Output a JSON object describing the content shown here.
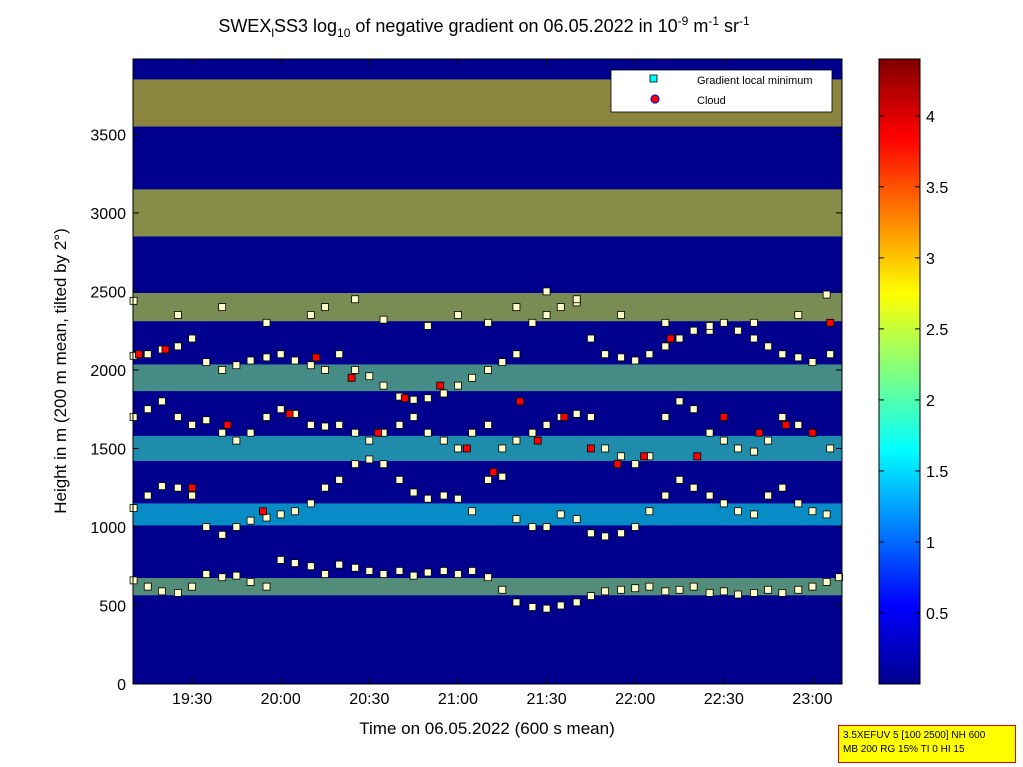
{
  "chart_data": {
    "type": "heatmap",
    "title": {
      "prefix": "SWEX",
      "sub1": "l",
      "mid": "SS3 log",
      "sub2": "10",
      "mid2": " of negative gradient on 06.05.2022 in 10",
      "sup1": "-9",
      "mid3": " m",
      "sup2": "-1",
      "mid4": " sr",
      "sup3": "-1"
    },
    "xlabel": "Time on 06.05.2022 (600 s mean)",
    "ylabel": "Height in m (200 m mean, tilted by 2°)",
    "xlim": [
      19.1667,
      23.1667
    ],
    "ylim": [
      0,
      3980
    ],
    "xticks": [
      {
        "v": 19.5,
        "label": "19:30"
      },
      {
        "v": 20.0,
        "label": "20:00"
      },
      {
        "v": 20.5,
        "label": "20:30"
      },
      {
        "v": 21.0,
        "label": "21:00"
      },
      {
        "v": 21.5,
        "label": "21:30"
      },
      {
        "v": 22.0,
        "label": "22:00"
      },
      {
        "v": 22.5,
        "label": "22:30"
      },
      {
        "v": 23.0,
        "label": "23:00"
      }
    ],
    "yticks": [
      {
        "v": 0,
        "label": "0"
      },
      {
        "v": 500,
        "label": "500"
      },
      {
        "v": 1000,
        "label": "1000"
      },
      {
        "v": 1500,
        "label": "1500"
      },
      {
        "v": 2000,
        "label": "2000"
      },
      {
        "v": 2500,
        "label": "2500"
      },
      {
        "v": 3000,
        "label": "3000"
      },
      {
        "v": 3500,
        "label": "3500"
      }
    ],
    "colorbar": {
      "clim": [
        0,
        4.4
      ],
      "ticks": [
        {
          "v": 0.5,
          "label": "0.5"
        },
        {
          "v": 1,
          "label": "1"
        },
        {
          "v": 1.5,
          "label": "1.5"
        },
        {
          "v": 2,
          "label": "2"
        },
        {
          "v": 2.5,
          "label": "2.5"
        },
        {
          "v": 3,
          "label": "3"
        },
        {
          "v": 3.5,
          "label": "3.5"
        },
        {
          "v": 4,
          "label": "4"
        }
      ],
      "colormap": "jet"
    },
    "background_layers": [
      {
        "h_center": 620,
        "h_width": 110,
        "value": 2.3
      },
      {
        "h_center": 1080,
        "h_width": 140,
        "value": 1.7
      },
      {
        "h_center": 1500,
        "h_width": 160,
        "value": 1.9
      },
      {
        "h_center": 1950,
        "h_width": 170,
        "value": 2.2
      },
      {
        "h_center": 2400,
        "h_width": 180,
        "value": 2.6
      },
      {
        "h_center": 3000,
        "h_width": 300,
        "value": 2.7
      },
      {
        "h_center": 3700,
        "h_width": 300,
        "value": 2.8
      }
    ],
    "legend": {
      "position": "top-right",
      "entries": [
        {
          "label": "Gradient local minimum",
          "color": "#00ffff",
          "marker": "square"
        },
        {
          "label": "Cloud",
          "color": "#ff0000",
          "marker": "circle"
        }
      ]
    },
    "series": [
      {
        "marker": "square",
        "x": [
          19.17,
          19.25,
          19.33,
          19.42,
          19.5,
          19.58,
          19.67,
          19.75,
          19.83,
          19.92,
          20.0,
          20.08,
          20.17,
          20.25,
          20.33,
          20.42,
          20.5,
          20.58,
          20.67,
          20.75,
          20.83,
          20.92,
          21.0,
          21.08,
          21.17,
          21.25,
          21.33,
          21.42,
          21.5,
          21.58,
          21.67,
          21.75,
          21.83,
          21.92,
          22.0,
          22.08,
          22.17,
          22.25,
          22.33,
          22.42,
          22.5,
          22.58,
          22.67,
          22.75,
          22.83,
          22.92,
          23.0,
          23.08,
          23.15
        ],
        "y": [
          660,
          620,
          590,
          580,
          620,
          700,
          680,
          690,
          650,
          620,
          790,
          770,
          750,
          700,
          760,
          740,
          720,
          700,
          720,
          690,
          710,
          720,
          700,
          720,
          680,
          600,
          520,
          490,
          480,
          500,
          520,
          560,
          590,
          600,
          610,
          620,
          590,
          600,
          620,
          580,
          590,
          570,
          580,
          600,
          580,
          600,
          620,
          650,
          680
        ]
      },
      {
        "marker": "square",
        "x": [
          19.17,
          19.25,
          19.33,
          19.42,
          19.5,
          19.58,
          19.67,
          19.75,
          19.83,
          19.92,
          20.0,
          20.08,
          20.17,
          20.25,
          20.33,
          20.42,
          20.5,
          20.58,
          20.67,
          20.75,
          20.83,
          20.92,
          21.0,
          21.08,
          21.17,
          21.25,
          21.33,
          21.42,
          21.5,
          21.58,
          21.67,
          21.75,
          21.83,
          21.92,
          22.0,
          22.08,
          22.17,
          22.25,
          22.33,
          22.42,
          22.5,
          22.58,
          22.67,
          22.75,
          22.83,
          22.92,
          23.0,
          23.08
        ],
        "y": [
          1120,
          1200,
          1260,
          1250,
          1200,
          1000,
          950,
          1000,
          1040,
          1060,
          1080,
          1100,
          1150,
          1250,
          1300,
          1400,
          1430,
          1400,
          1300,
          1220,
          1180,
          1200,
          1180,
          1100,
          1300,
          1320,
          1050,
          1000,
          1000,
          1080,
          1050,
          960,
          940,
          960,
          1000,
          1100,
          1200,
          1300,
          1250,
          1200,
          1150,
          1100,
          1080,
          1200,
          1250,
          1150,
          1100,
          1080
        ]
      },
      {
        "marker": "square",
        "x": [
          19.17,
          19.25,
          19.33,
          19.42,
          19.5,
          19.58,
          19.67,
          19.75,
          19.83,
          19.92,
          20.0,
          20.08,
          20.17,
          20.25,
          20.33,
          20.42,
          20.5,
          20.58,
          20.67,
          20.75,
          20.83,
          20.92,
          21.0,
          21.08,
          21.17,
          21.25,
          21.33,
          21.42,
          21.5,
          21.58,
          21.67,
          21.75,
          21.83,
          21.92,
          22.0,
          22.08,
          22.17,
          22.25,
          22.33,
          22.42,
          22.5,
          22.58,
          22.67,
          22.75,
          22.83,
          22.92,
          23.0,
          23.1
        ],
        "y": [
          1700,
          1750,
          1800,
          1700,
          1650,
          1680,
          1600,
          1550,
          1600,
          1700,
          1750,
          1720,
          1650,
          1640,
          1650,
          1600,
          1550,
          1600,
          1650,
          1700,
          1600,
          1550,
          1500,
          1600,
          1650,
          1500,
          1550,
          1600,
          1650,
          1700,
          1720,
          1700,
          1500,
          1450,
          1400,
          1450,
          1700,
          1800,
          1750,
          1600,
          1550,
          1500,
          1480,
          1550,
          1700,
          1650,
          1600,
          1500
        ]
      },
      {
        "marker": "square",
        "x": [
          19.17,
          19.25,
          19.33,
          19.42,
          19.5,
          19.58,
          19.67,
          19.75,
          19.83,
          19.92,
          20.0,
          20.08,
          20.17,
          20.25,
          20.33,
          20.42,
          20.5,
          20.58,
          20.67,
          20.75,
          20.83,
          20.92,
          21.0,
          21.08,
          21.17,
          21.25,
          21.33,
          21.42,
          21.5,
          21.58,
          21.67,
          21.75,
          21.83,
          21.92,
          22.0,
          22.08,
          22.17,
          22.25,
          22.33,
          22.42,
          22.5,
          22.58,
          22.67,
          22.75,
          22.83,
          22.92,
          23.0,
          23.1
        ],
        "y": [
          2090,
          2100,
          2130,
          2150,
          2200,
          2050,
          2000,
          2030,
          2060,
          2080,
          2100,
          2060,
          2030,
          2000,
          2100,
          2000,
          1960,
          1900,
          1830,
          1810,
          1820,
          1850,
          1900,
          1950,
          2000,
          2050,
          2100,
          2300,
          2350,
          2400,
          2430,
          2200,
          2100,
          2080,
          2060,
          2100,
          2150,
          2200,
          2250,
          2250,
          2300,
          2250,
          2200,
          2150,
          2100,
          2080,
          2050,
          2100
        ]
      },
      {
        "marker": "square",
        "x": [
          19.17,
          19.42,
          19.67,
          19.92,
          20.17,
          20.25,
          20.42,
          20.58,
          20.83,
          21.0,
          21.17,
          21.33,
          21.5,
          21.67,
          21.92,
          22.17,
          22.42,
          22.67,
          22.92,
          23.08
        ],
        "y": [
          2440,
          2350,
          2400,
          2300,
          2350,
          2400,
          2450,
          2320,
          2280,
          2350,
          2300,
          2400,
          2500,
          2450,
          2350,
          2300,
          2280,
          2300,
          2350,
          2480
        ]
      }
    ],
    "clouds": {
      "x": [
        19.2,
        19.35,
        19.5,
        19.7,
        19.9,
        20.05,
        20.2,
        20.4,
        20.55,
        20.7,
        20.9,
        21.05,
        21.2,
        21.35,
        21.45,
        21.6,
        21.75,
        21.9,
        22.05,
        22.2,
        22.35,
        22.5,
        22.7,
        22.85,
        23.0,
        23.1
      ],
      "y": [
        2100,
        2130,
        1250,
        1650,
        1100,
        1720,
        2080,
        1950,
        1600,
        1820,
        1900,
        1500,
        1350,
        1800,
        1550,
        1700,
        1500,
        1400,
        1450,
        2200,
        1450,
        1700,
        1600,
        1650,
        1600,
        2300
      ]
    }
  },
  "infobox": {
    "line1": "3.5XEFUV 5 [100 2500] NH 600",
    "line2": "MB 200 RG 15% TI 0 HI 15"
  }
}
